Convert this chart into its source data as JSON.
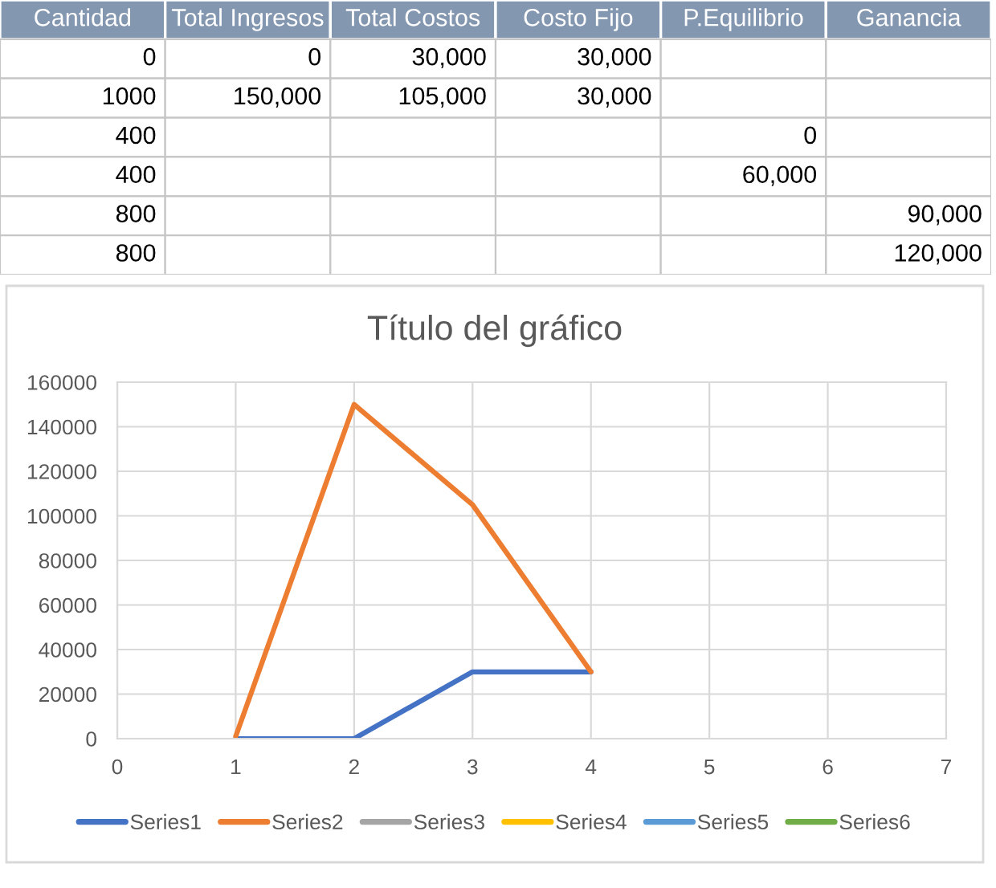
{
  "chart_data": [
    {
      "type": "other",
      "categories": [
        "Cantidad",
        "Total Ingresos",
        "Total Costos",
        "Costo Fijo",
        "P.Equilibrio",
        "Ganancia"
      ],
      "cell_labels": [
        [
          "0",
          "0",
          "30,000",
          "30,000",
          null,
          null
        ],
        [
          "1000",
          "150,000",
          "105,000",
          "30,000",
          null,
          null
        ],
        [
          "400",
          null,
          null,
          null,
          "0",
          null
        ],
        [
          "400",
          null,
          null,
          null,
          "60,000",
          null
        ],
        [
          "800",
          null,
          null,
          null,
          null,
          "90,000"
        ],
        [
          "800",
          null,
          null,
          null,
          null,
          "120,000"
        ]
      ]
    },
    {
      "type": "line",
      "title": "Título del gráfico",
      "x": [
        1,
        2,
        3,
        4
      ],
      "series": [
        {
          "name": "Series1",
          "color": "#4472c4",
          "values": [
            0,
            0,
            30000,
            30000
          ]
        },
        {
          "name": "Series2",
          "color": "#ed7d31",
          "values": [
            1000,
            150000,
            105000,
            30000
          ]
        },
        {
          "name": "Series3",
          "color": "#a5a5a5",
          "values": [
            null,
            null,
            null,
            null
          ]
        },
        {
          "name": "Series4",
          "color": "#ffc000",
          "values": [
            null,
            null,
            null,
            null
          ]
        },
        {
          "name": "Series5",
          "color": "#5b9bd5",
          "values": [
            null,
            null,
            null,
            null
          ]
        },
        {
          "name": "Series6",
          "color": "#70ad47",
          "values": [
            null,
            null,
            null,
            null
          ]
        }
      ],
      "xlim": [
        0,
        7
      ],
      "xticks": [
        0,
        1,
        2,
        3,
        4,
        5,
        6,
        7
      ],
      "ylim": [
        0,
        160000
      ],
      "yticks": [
        0,
        20000,
        40000,
        60000,
        80000,
        100000,
        120000,
        140000,
        160000
      ],
      "grid": true,
      "legend": "bottom"
    }
  ]
}
